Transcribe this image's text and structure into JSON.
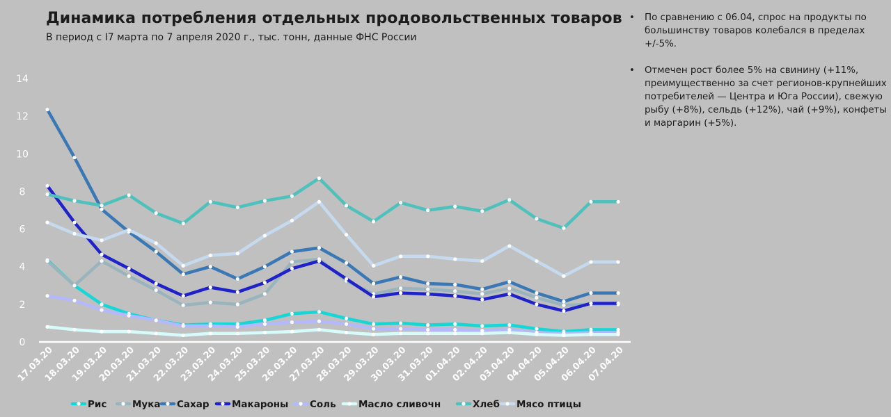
{
  "header": {
    "title": "Динамика потребления отдельных продовольственных товаров",
    "subtitle": "В период с I7 марта по 7 апреля 2020 г., тыс. тонн, данные ФНС России"
  },
  "notes": [
    "По сравнению с 06.04, спрос на продукты по большинству товаров колебался в пределах +/-5%.",
    "Отмечен рост более 5%  на свинину (+11%, преимущественно за счет регионов-крупнейших потребителей — Центра и Юга России), свежую рыбу (+8%), сельдь (+12%), чай (+9%), конфеты и маргарин (+5%)."
  ],
  "chart_data": {
    "type": "line",
    "title": "",
    "xlabel": "",
    "ylabel": "",
    "ylim": [
      0,
      14
    ],
    "yticks": [
      0,
      2,
      4,
      6,
      8,
      10,
      12,
      14
    ],
    "grid": false,
    "legend_position": "bottom",
    "categories": [
      "17.03.20",
      "18.03.20",
      "19.03.20",
      "20.03.20",
      "21.03.20",
      "22.03.20",
      "23.03.20",
      "24.03.20",
      "25.03.20",
      "26.03.20",
      "27.03.20",
      "28.03.20",
      "29.03.20",
      "30.03.20",
      "31.03.20",
      "01.04.20",
      "02.04.20",
      "03.04.20",
      "04.04.20",
      "05.04.20",
      "06.04.20",
      "07.04.20"
    ],
    "series": [
      {
        "name": "Рис",
        "color": "#17d6d6",
        "values": [
          4.35,
          3.0,
          2.0,
          1.5,
          1.15,
          0.9,
          0.95,
          0.95,
          1.15,
          1.5,
          1.6,
          1.25,
          0.95,
          1.0,
          0.9,
          0.95,
          0.85,
          0.9,
          0.7,
          0.55,
          0.65,
          0.65
        ]
      },
      {
        "name": "Мука",
        "color": "#9ab4bd",
        "values": [
          4.3,
          3.0,
          4.3,
          3.5,
          2.75,
          1.95,
          2.1,
          2.0,
          2.55,
          4.25,
          4.4,
          3.25,
          2.55,
          2.85,
          2.8,
          2.7,
          2.55,
          2.85,
          2.35,
          1.95,
          2.0,
          2.0
        ]
      },
      {
        "name": "Сахар",
        "color": "#3a78b5",
        "values": [
          12.35,
          9.8,
          7.05,
          5.85,
          4.8,
          3.6,
          4.0,
          3.35,
          4.0,
          4.8,
          5.0,
          4.2,
          3.1,
          3.45,
          3.1,
          3.05,
          2.8,
          3.2,
          2.6,
          2.15,
          2.6,
          2.6
        ]
      },
      {
        "name": "Макароны",
        "color": "#1e22c8",
        "values": [
          8.3,
          6.35,
          4.65,
          3.9,
          3.1,
          2.45,
          2.9,
          2.65,
          3.15,
          3.9,
          4.3,
          3.35,
          2.4,
          2.6,
          2.55,
          2.45,
          2.25,
          2.55,
          2.0,
          1.65,
          2.05,
          2.05
        ]
      },
      {
        "name": "Соль",
        "color": "#b3b8ff",
        "values": [
          2.45,
          2.2,
          1.7,
          1.4,
          1.15,
          0.85,
          0.85,
          0.8,
          0.95,
          1.05,
          1.1,
          0.95,
          0.7,
          0.7,
          0.65,
          0.65,
          0.6,
          0.65,
          0.5,
          0.45,
          0.5,
          0.5
        ]
      },
      {
        "name": "Масло сливочн",
        "color": "#d5fbfb",
        "values": [
          0.8,
          0.65,
          0.55,
          0.55,
          0.45,
          0.35,
          0.45,
          0.45,
          0.5,
          0.55,
          0.65,
          0.5,
          0.4,
          0.45,
          0.45,
          0.45,
          0.45,
          0.5,
          0.4,
          0.35,
          0.4,
          0.4
        ]
      },
      {
        "name": "Хлеб",
        "color": "#4ec1bc",
        "values": [
          7.85,
          7.5,
          7.25,
          7.8,
          6.85,
          6.3,
          7.45,
          7.15,
          7.5,
          7.75,
          8.7,
          7.25,
          6.4,
          7.4,
          7.0,
          7.2,
          6.95,
          7.55,
          6.55,
          6.05,
          7.45,
          7.45
        ]
      },
      {
        "name": "Мясо птицы",
        "color": "#c6daef",
        "values": [
          6.35,
          5.75,
          5.4,
          5.95,
          5.25,
          4.05,
          4.6,
          4.7,
          5.65,
          6.45,
          7.45,
          5.7,
          4.05,
          4.55,
          4.55,
          4.4,
          4.3,
          5.1,
          4.3,
          3.5,
          4.25,
          4.25
        ]
      }
    ]
  }
}
